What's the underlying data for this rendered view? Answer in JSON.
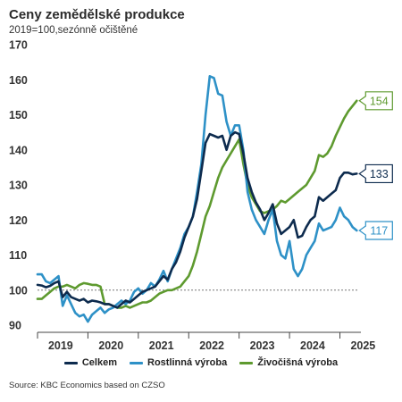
{
  "chart_data": {
    "type": "line",
    "title": "Ceny zemědělské produkce",
    "subtitle": "2019=100,sezónně očištěné",
    "source": "Source: KBC Economics based on CZSO",
    "ylim": [
      90,
      170
    ],
    "yticks": [
      90,
      100,
      110,
      120,
      130,
      140,
      150,
      160,
      170
    ],
    "xlim": [
      0,
      77
    ],
    "x_tick_labels": [
      {
        "label": "2019",
        "x": 5.5
      },
      {
        "label": "2020",
        "x": 17.5
      },
      {
        "label": "2021",
        "x": 29.5
      },
      {
        "label": "2022",
        "x": 41.5
      },
      {
        "label": "2023",
        "x": 53.5
      },
      {
        "label": "2024",
        "x": 65.5
      },
      {
        "label": "2025",
        "x": 77.5
      }
    ],
    "x_ticks": [
      0,
      12,
      24,
      36,
      48,
      60,
      72
    ],
    "reference_line": 100,
    "grid": false,
    "legend_position": "bottom",
    "series": [
      {
        "name": "Celkem",
        "color": "#0d2b4e",
        "end_label": "133",
        "values": [
          101.5,
          101.3,
          100.8,
          101.2,
          102.0,
          102.5,
          98.0,
          99.5,
          98.0,
          97.5,
          97.0,
          97.5,
          96.5,
          97.0,
          96.8,
          96.5,
          96.0,
          96.0,
          95.5,
          95.0,
          96.0,
          97.0,
          96.5,
          97.5,
          98.5,
          99.5,
          100.0,
          100.5,
          101.0,
          102.5,
          104.0,
          103.0,
          106.0,
          108.0,
          111.0,
          115.0,
          118.0,
          121.0,
          126.0,
          134.0,
          142.0,
          144.5,
          144.0,
          143.5,
          144.0,
          140.0,
          144.0,
          145.0,
          144.5,
          139.0,
          132.0,
          128.0,
          125.0,
          123.0,
          120.0,
          122.0,
          124.5,
          119.0,
          116.0,
          117.0,
          118.0,
          120.0,
          115.0,
          115.5,
          118.0,
          120.0,
          121.0,
          126.5,
          125.5,
          126.5,
          127.5,
          128.5,
          132.0,
          133.5,
          133.5,
          133.0,
          133.2
        ]
      },
      {
        "name": "Rostlinná výroba",
        "color": "#2e91c7",
        "end_label": "117",
        "values": [
          104.5,
          104.5,
          102.5,
          102.0,
          103.0,
          104.0,
          95.5,
          98.5,
          96.0,
          93.5,
          92.5,
          93.0,
          91.0,
          93.0,
          94.0,
          95.0,
          93.5,
          94.5,
          95.0,
          96.0,
          97.0,
          96.0,
          97.0,
          99.5,
          100.5,
          99.0,
          100.0,
          102.0,
          101.0,
          103.0,
          105.5,
          102.5,
          106.0,
          109.0,
          112.0,
          116.0,
          118.0,
          121.0,
          128.0,
          136.0,
          150.0,
          161.0,
          160.5,
          156.0,
          155.5,
          148.0,
          144.0,
          147.0,
          147.0,
          140.0,
          128.0,
          123.0,
          120.0,
          118.0,
          116.0,
          120.0,
          123.0,
          114.0,
          110.0,
          109.0,
          114.0,
          106.0,
          104.0,
          106.0,
          110.0,
          112.0,
          114.0,
          119.0,
          117.0,
          117.5,
          118.0,
          120.0,
          123.5,
          121.0,
          120.0,
          118.0,
          117.0
        ]
      },
      {
        "name": "Živočišná výroba",
        "color": "#5e9a2f",
        "end_label": "154",
        "values": [
          97.5,
          97.5,
          98.5,
          99.5,
          100.5,
          101.0,
          101.0,
          101.5,
          101.0,
          100.5,
          101.5,
          102.0,
          101.8,
          101.5,
          101.5,
          101.0,
          96.0,
          96.0,
          95.5,
          95.0,
          95.0,
          95.5,
          95.0,
          95.5,
          96.0,
          96.5,
          96.5,
          97.0,
          98.0,
          99.0,
          99.5,
          100.0,
          100.0,
          100.5,
          101.0,
          102.5,
          104.0,
          107.0,
          111.0,
          116.0,
          121.0,
          124.0,
          128.0,
          132.0,
          135.0,
          137.0,
          139.0,
          141.0,
          143.0,
          136.0,
          130.0,
          126.5,
          124.5,
          122.5,
          122.0,
          122.5,
          123.0,
          124.0,
          125.5,
          125.0,
          126.0,
          127.0,
          128.0,
          129.0,
          130.0,
          132.0,
          134.0,
          138.5,
          138.0,
          139.0,
          141.0,
          144.0,
          146.5,
          149.0,
          151.0,
          152.5,
          154.0
        ]
      }
    ]
  }
}
